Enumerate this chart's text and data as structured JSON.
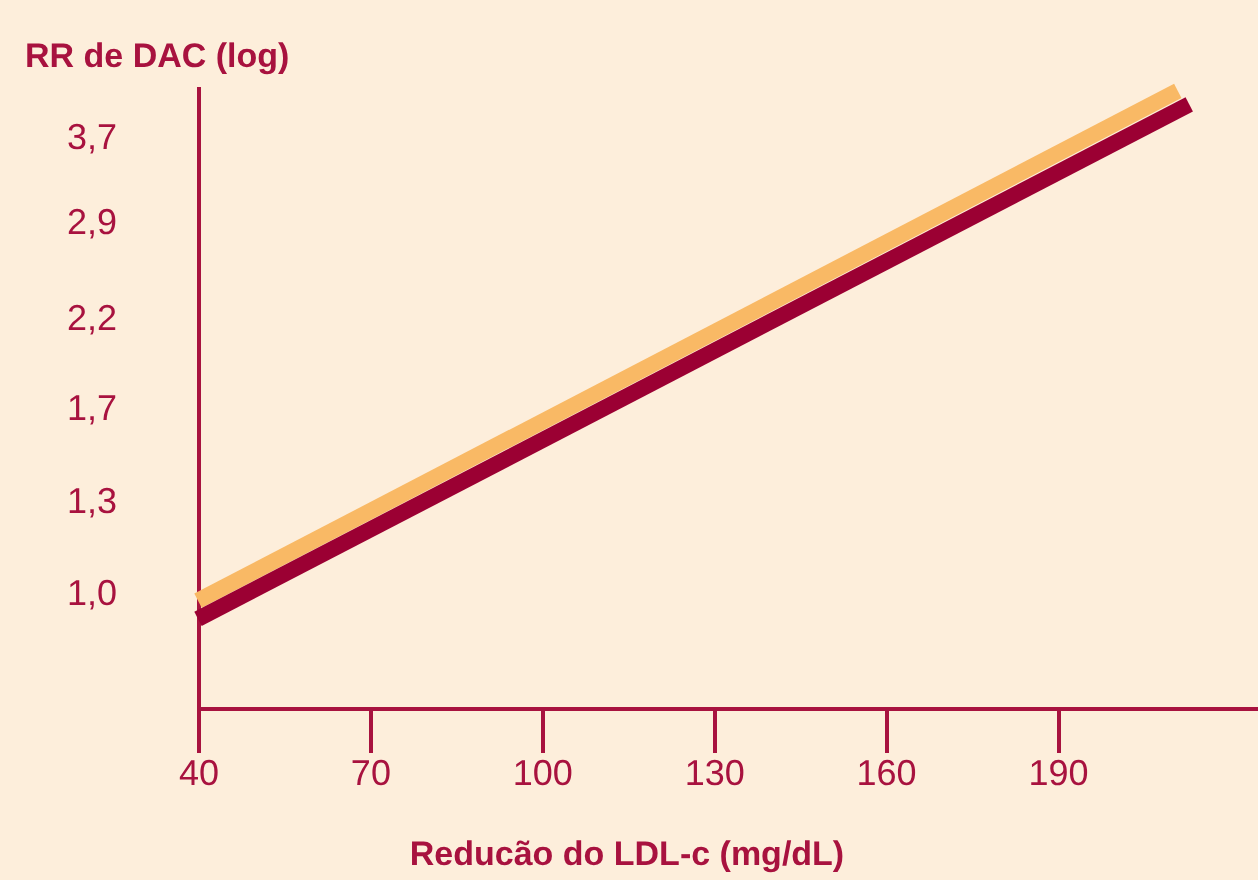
{
  "chart_data": {
    "type": "line",
    "xlabel": "Reducão do LDL-c (mg/dL)",
    "ylabel": "RR de DAC (log)",
    "log": "y",
    "xlim": [
      40,
      225
    ],
    "xticks": [
      40,
      70,
      100,
      130,
      160,
      190
    ],
    "ylim": [
      0.72,
      4.3
    ],
    "yticks": [
      {
        "value": 1.0,
        "label": "1,0"
      },
      {
        "value": 1.3,
        "label": "1,3"
      },
      {
        "value": 1.7,
        "label": "1,7"
      },
      {
        "value": 2.2,
        "label": "2,2"
      },
      {
        "value": 2.9,
        "label": "2,9"
      },
      {
        "value": 3.7,
        "label": "3,7"
      }
    ],
    "series": [
      {
        "color": "#f9b965",
        "x": [
          40,
          211
        ],
        "values": [
          0.98,
          4.24
        ]
      },
      {
        "color": "#9b0033",
        "x": [
          40,
          213
        ],
        "values": [
          0.93,
          4.08
        ]
      }
    ]
  }
}
